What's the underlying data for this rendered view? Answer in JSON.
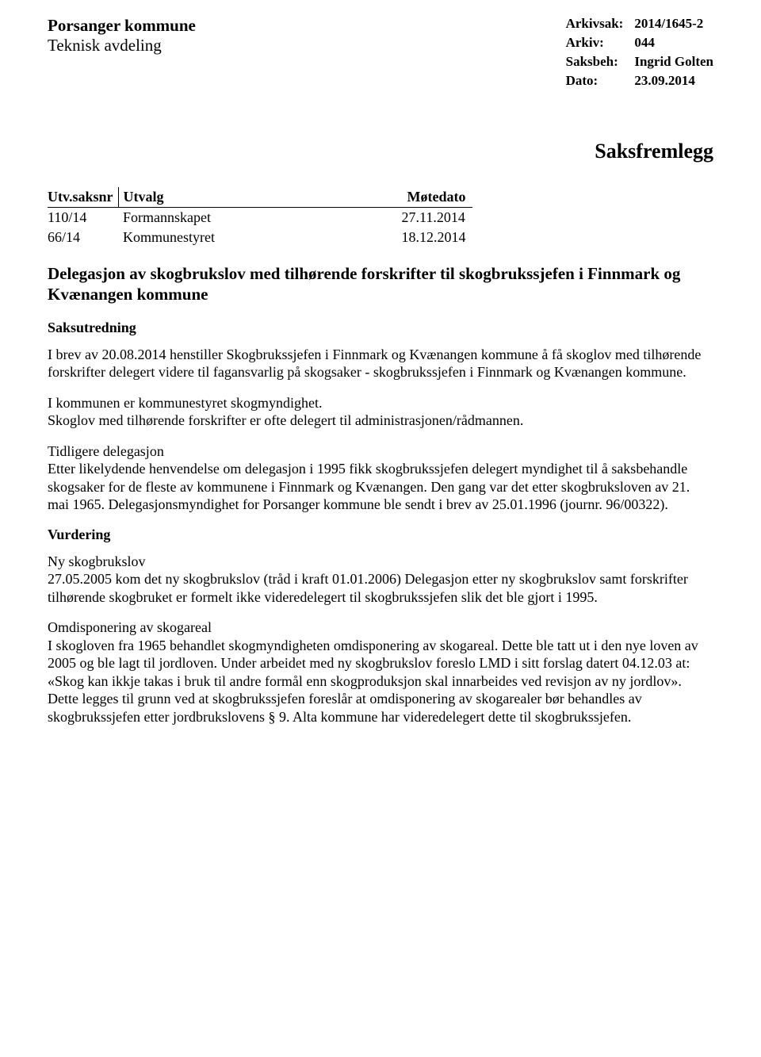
{
  "header": {
    "org": "Porsanger kommune",
    "dept": "Teknisk avdeling",
    "meta": [
      {
        "label": "Arkivsak:",
        "value": "2014/1645-2",
        "bold": true
      },
      {
        "label": "Arkiv:",
        "value": "044",
        "bold": true
      },
      {
        "label": "Saksbeh:",
        "value": "Ingrid Golten",
        "bold": true
      },
      {
        "label": "Dato:",
        "value": "23.09.2014",
        "bold": true
      }
    ]
  },
  "title_right": "Saksfremlegg",
  "utvalg_table": {
    "headers": [
      "Utv.saksnr",
      "Utvalg",
      "Møtedato"
    ],
    "rows": [
      [
        "110/14",
        "Formannskapet",
        "27.11.2014"
      ],
      [
        "66/14",
        "Kommunestyret",
        "18.12.2014"
      ]
    ]
  },
  "case_title": "Delegasjon av skogbrukslov med tilhørende forskrifter til skogbrukssjefen i Finnmark og Kvænangen kommune",
  "sections": {
    "saksutredning_h": "Saksutredning",
    "p1": "I brev av 20.08.2014 henstiller Skogbrukssjefen i Finnmark og Kvænangen kommune å få skoglov med tilhørende forskrifter delegert videre til fagansvarlig på skogsaker - skogbrukssjefen i Finnmark og Kvænangen kommune.",
    "p2": "I kommunen er kommunestyret skogmyndighet.\nSkoglov med tilhørende forskrifter er ofte delegert til administrasjonen/rådmannen.",
    "p3_sub": "Tidligere delegasjon",
    "p3": "Etter likelydende henvendelse om delegasjon i 1995 fikk skogbrukssjefen delegert myndighet til å saksbehandle skogsaker for de fleste av kommunene i Finnmark og Kvænangen. Den gang var det etter skogbruksloven av 21. mai 1965. Delegasjonsmyndighet for Porsanger kommune ble sendt i brev av 25.01.1996 (journr. 96/00322).",
    "vurdering_h": "Vurdering",
    "p4_sub": "Ny skogbrukslov",
    "p4": "27.05.2005 kom det ny skogbrukslov (tråd i kraft 01.01.2006) Delegasjon etter ny skogbrukslov samt forskrifter tilhørende skogbruket er formelt ikke videredelegert til skogbrukssjefen slik det ble gjort i 1995.",
    "p5_sub": "Omdisponering av skogareal",
    "p5": "I skogloven fra 1965 behandlet skogmyndigheten omdisponering av skogareal. Dette ble tatt ut i den nye loven av 2005 og ble lagt til jordloven. Under arbeidet med ny skogbrukslov foreslo LMD i sitt forslag datert 04.12.03 at: «Skog kan ikkje takas i bruk til andre formål enn skogproduksjon skal innarbeides ved revisjon av ny jordlov».\nDette legges til grunn ved at skogbrukssjefen foreslår at omdisponering av skogarealer bør behandles av skogbrukssjefen etter jordbrukslovens § 9. Alta kommune har videredelegert dette til skogbrukssjefen."
  }
}
